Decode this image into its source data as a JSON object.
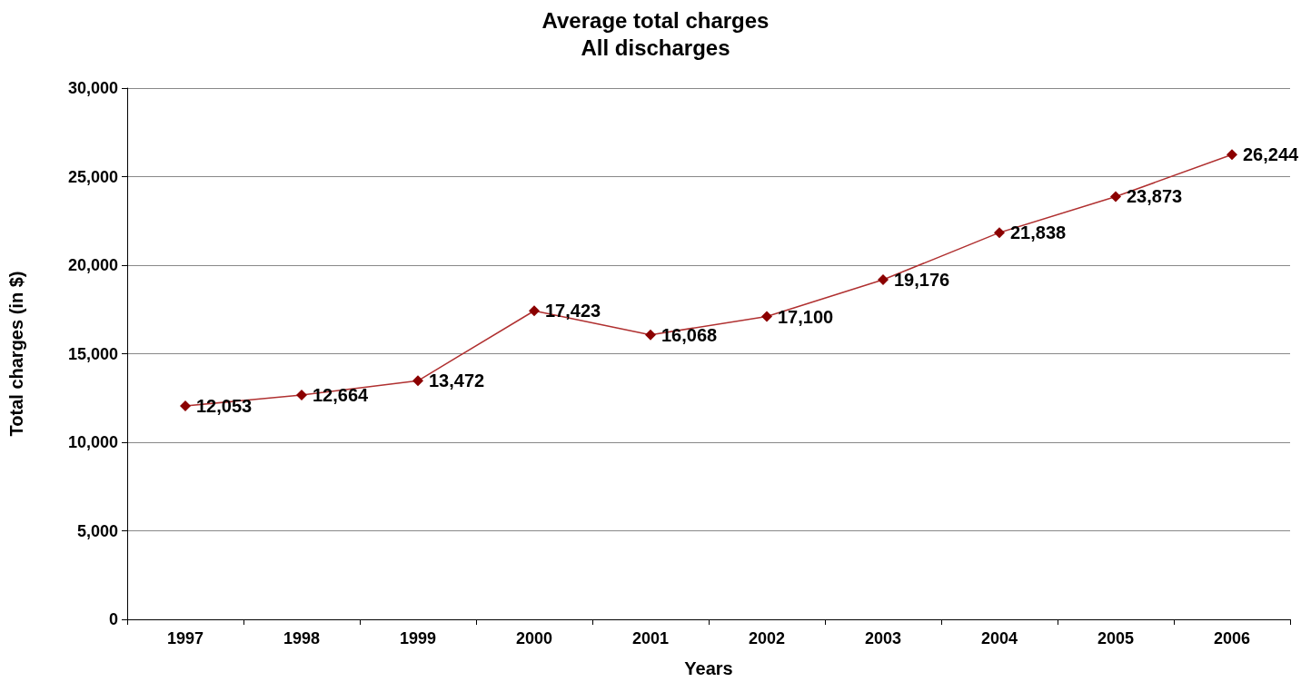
{
  "chart_data": {
    "type": "line",
    "title": "Average total charges",
    "subtitle": "All discharges",
    "xlabel": "Years",
    "ylabel": "Total charges (in $)",
    "categories": [
      "1997",
      "1998",
      "1999",
      "2000",
      "2001",
      "2002",
      "2003",
      "2004",
      "2005",
      "2006"
    ],
    "series": [
      {
        "color": "#8b0000",
        "values": [
          12053,
          12664,
          13472,
          17423,
          16068,
          17100,
          19176,
          21838,
          23873,
          26244
        ],
        "value_labels": [
          "12,053",
          "12,664",
          "13,472",
          "17,423",
          "16,068",
          "17,100",
          "19,176",
          "21,838",
          "23,873",
          "26,244"
        ]
      }
    ],
    "ylim": [
      0,
      30000
    ],
    "yticks": [
      0,
      {
        "value": 5000,
        "label": "5,000"
      },
      {
        "value": 10000,
        "label": "10,000"
      },
      {
        "value": 15000,
        "label": "15,000"
      },
      {
        "value": 20000,
        "label": "20,000"
      },
      {
        "value": 25000,
        "label": "25,000"
      },
      {
        "value": 30000,
        "label": "30,000"
      }
    ],
    "grid": "y",
    "marker": "diamond",
    "line_style": "solid"
  }
}
